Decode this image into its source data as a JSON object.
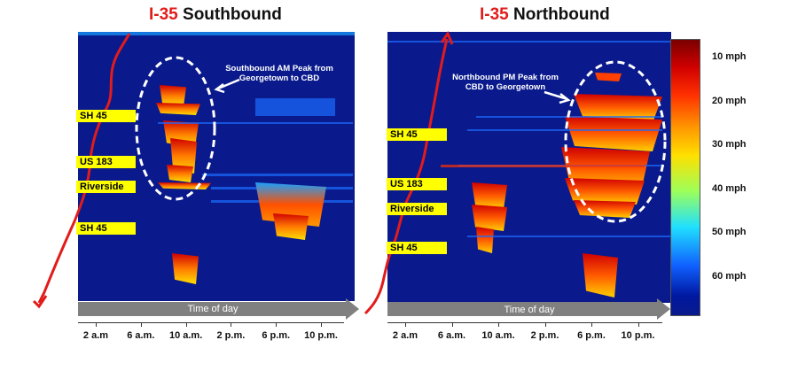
{
  "colors": {
    "background": "#0a1a8c",
    "red_arrow": "#e21b1b",
    "label_bg": "#ffff00",
    "time_arrow": "#808080"
  },
  "left": {
    "title_hw": "I-35",
    "title_dir": "Southbound",
    "roads": [
      "SH 45",
      "US 183",
      "Riverside",
      "SH 45"
    ],
    "annotation": [
      "Southbound AM Peak from",
      "Georgetown to CBD"
    ],
    "time_label": "Time of day"
  },
  "right": {
    "title_hw": "I-35",
    "title_dir": "Northbound",
    "roads": [
      "SH 45",
      "US 183",
      "Riverside",
      "SH 45"
    ],
    "annotation": [
      "Northbound PM Peak from",
      "CBD to Georgetown"
    ],
    "time_label": "Time of day"
  },
  "chart_data": [
    {
      "type": "heatmap",
      "title": "I-35 Southbound",
      "xlabel": "Time of day",
      "x_ticks": [
        "2 a.m",
        "6 a.m.",
        "10 a.m.",
        "2 p.m.",
        "6 p.m.",
        "10 p.m."
      ],
      "y_labels": [
        "SH 45",
        "US 183",
        "Riverside",
        "SH 45"
      ],
      "colorbar": {
        "min": 60,
        "max": 10,
        "ticks": [
          "10 mph",
          "20 mph",
          "30 mph",
          "40 mph",
          "50 mph",
          "60 mph"
        ]
      },
      "highlight": "Southbound AM Peak from Georgetown to CBD"
    },
    {
      "type": "heatmap",
      "title": "I-35 Northbound",
      "xlabel": "Time of day",
      "x_ticks": [
        "2 a.m",
        "6 a.m.",
        "10 a.m.",
        "2 p.m.",
        "6 p.m.",
        "10 p.m."
      ],
      "y_labels": [
        "SH 45",
        "US 183",
        "Riverside",
        "SH 45"
      ],
      "colorbar": {
        "min": 60,
        "max": 10,
        "ticks": [
          "10 mph",
          "20 mph",
          "30 mph",
          "40 mph",
          "50 mph",
          "60 mph"
        ]
      },
      "highlight": "Northbound PM Peak from CBD to Georgetown"
    }
  ],
  "colorbar_ticks": [
    "10 mph",
    "20 mph",
    "30 mph",
    "40 mph",
    "50 mph",
    "60 mph"
  ],
  "x_ticks": [
    "2 a.m",
    "6 a.m.",
    "10 a.m.",
    "2 p.m.",
    "6 p.m.",
    "10 p.m."
  ]
}
